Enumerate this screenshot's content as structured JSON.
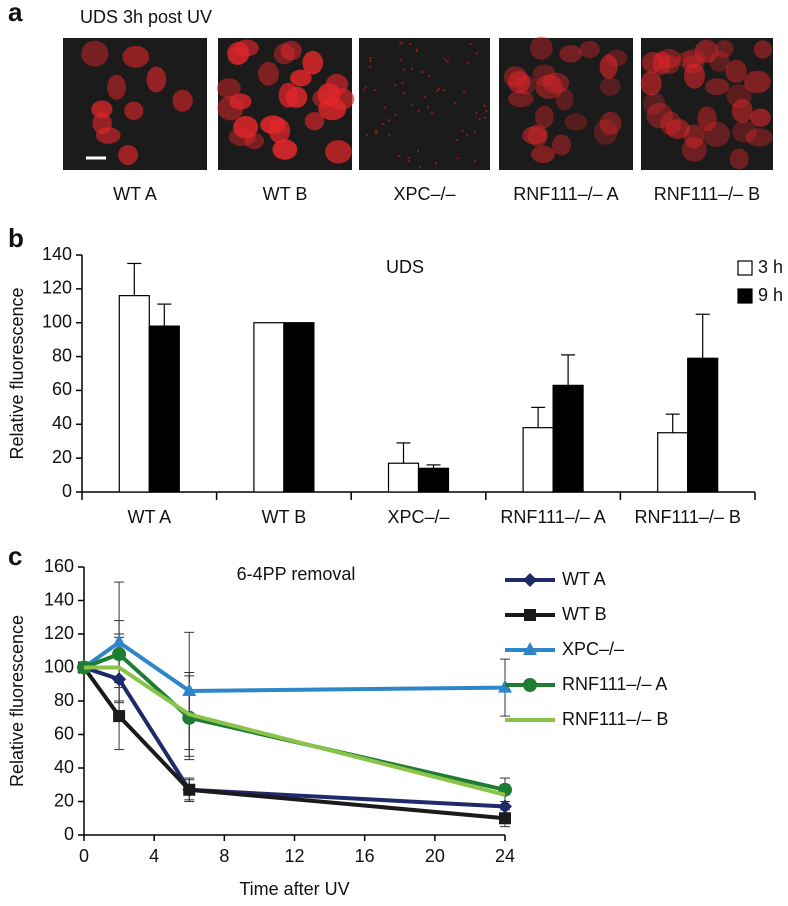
{
  "panel_labels": [
    "a",
    "b",
    "c"
  ],
  "images": {
    "title": "UDS 3h post UV",
    "labels": [
      "WT A",
      "WT B",
      "XPC–/–",
      "RNF111–/– A",
      "RNF111–/– B"
    ]
  },
  "chart_data": [
    {
      "type": "bar",
      "title": "UDS",
      "y_label": "Relative fluorescence",
      "categories": [
        "WT A",
        "WT B",
        "XPC–/–",
        "RNF111–/– A",
        "RNF111–/– B"
      ],
      "series": [
        {
          "name": "3 h",
          "color": "#ffffff",
          "values": [
            116,
            100,
            17,
            38,
            35
          ],
          "errors": [
            19,
            0,
            12,
            12,
            11
          ]
        },
        {
          "name": "9 h",
          "color": "#000000",
          "values": [
            98,
            100,
            14,
            63,
            79
          ],
          "errors": [
            13,
            0,
            2,
            18,
            26
          ]
        }
      ],
      "ylim": [
        0,
        140
      ],
      "yticks": [
        0,
        20,
        40,
        60,
        80,
        100,
        120,
        140
      ],
      "legend": "top-right"
    },
    {
      "type": "line",
      "title": "6-4PP removal",
      "x_label": "Time after UV",
      "y_label": "Relative fluorescence",
      "x": [
        0,
        2,
        6,
        24
      ],
      "series": [
        {
          "name": "WT A",
          "color": "#1f2a6b",
          "marker": "diamond",
          "values": [
            100,
            93,
            27,
            17
          ],
          "errors": [
            0,
            25,
            6,
            0
          ]
        },
        {
          "name": "WT B",
          "color": "#1a1a1a",
          "marker": "square",
          "values": [
            100,
            71,
            27,
            10
          ],
          "errors": [
            0,
            20,
            7,
            5
          ]
        },
        {
          "name": "XPC–/–",
          "color": "#2e86c8",
          "marker": "triangle",
          "values": [
            100,
            115,
            86,
            88
          ],
          "errors": [
            0,
            36,
            35,
            17
          ]
        },
        {
          "name": "RNF111–/– A",
          "color": "#1e7d32",
          "marker": "circle",
          "values": [
            100,
            108,
            70,
            27
          ],
          "errors": [
            0,
            20,
            25,
            7
          ]
        },
        {
          "name": "RNF111–/– B",
          "color": "#8bc34a",
          "marker": "none",
          "values": [
            100,
            100,
            72,
            24
          ],
          "errors": [
            0,
            20,
            25,
            6
          ]
        }
      ],
      "xlim": [
        0,
        24
      ],
      "xticks": [
        0,
        4,
        8,
        12,
        16,
        20,
        24
      ],
      "ylim": [
        0,
        160
      ],
      "yticks": [
        0,
        20,
        40,
        60,
        80,
        100,
        120,
        140,
        160
      ],
      "legend": "right"
    }
  ]
}
